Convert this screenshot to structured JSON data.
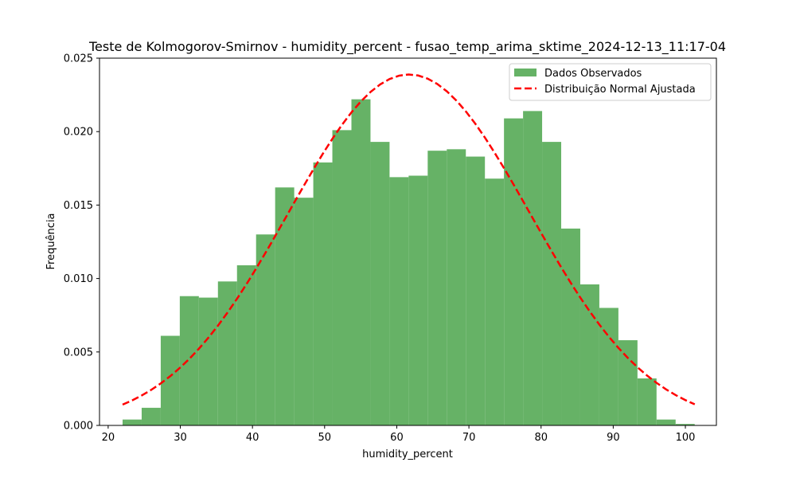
{
  "chart_data": {
    "type": "bar",
    "title": "Teste de Kolmogorov-Smirnov - humidity_percent - fusao_temp_arima_sktime_2024-12-13_11:17-04",
    "xlabel": "humidity_percent",
    "ylabel": "Frequência",
    "xlim": [
      18.8,
      104.3
    ],
    "ylim": [
      0,
      0.025
    ],
    "xticks": [
      20,
      30,
      40,
      50,
      60,
      70,
      80,
      90,
      100
    ],
    "yticks": [
      0.0,
      0.005,
      0.01,
      0.015,
      0.02,
      0.025
    ],
    "ytick_labels": [
      "0.000",
      "0.005",
      "0.010",
      "0.015",
      "0.020",
      "0.025"
    ],
    "grid": false,
    "legend_position": "top-right",
    "histogram": {
      "name": "Dados Observados",
      "color": "#66b266",
      "bin_start": 22.0,
      "bin_width": 2.643,
      "values": [
        0.0004,
        0.0012,
        0.0061,
        0.0088,
        0.0087,
        0.0098,
        0.0109,
        0.013,
        0.0162,
        0.0155,
        0.0179,
        0.0201,
        0.0222,
        0.0193,
        0.0169,
        0.017,
        0.0187,
        0.0188,
        0.0183,
        0.0168,
        0.0209,
        0.0214,
        0.0193,
        0.0134,
        0.0096,
        0.008,
        0.0058,
        0.0032,
        0.0004,
        0.0001
      ]
    },
    "fit_line": {
      "name": "Distribuição Normal Ajustada",
      "color": "#ff0000",
      "style": "dashed",
      "x_start": 22.0,
      "x_end": 101.3,
      "mean": 61.7,
      "std": 16.7
    }
  }
}
